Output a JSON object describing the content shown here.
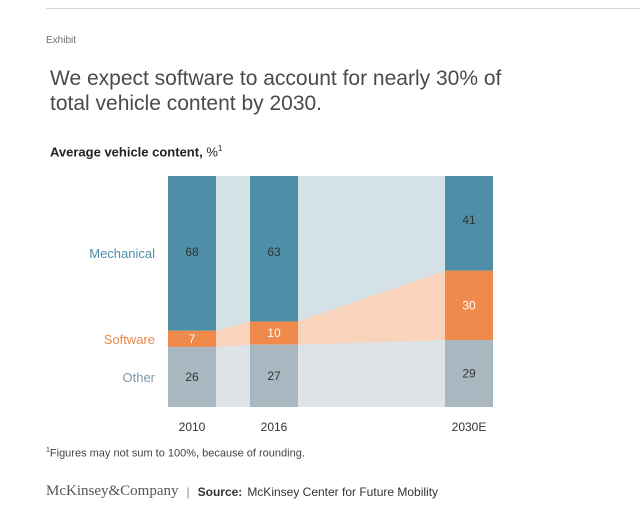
{
  "header": {
    "exhibit_label": "Exhibit",
    "title": "We expect software to account for nearly 30% of total vehicle content by 2030.",
    "subtitle_bold": "Average vehicle content,",
    "subtitle_unit": "%",
    "subtitle_note_mark": "1"
  },
  "chart_data": {
    "type": "bar",
    "stacked": true,
    "title": "Average vehicle content, %",
    "categories": [
      "2010",
      "2016",
      "2030E"
    ],
    "series": [
      {
        "name": "Other",
        "values": [
          26,
          27,
          29
        ]
      },
      {
        "name": "Software",
        "values": [
          7,
          10,
          30
        ]
      },
      {
        "name": "Mechanical",
        "values": [
          68,
          63,
          41
        ]
      }
    ],
    "ylim": [
      0,
      100
    ],
    "colors": {
      "Mechanical": "#4e8ea6",
      "Software": "#ef8a4c",
      "Other": "#a9b8c0",
      "connector_main": "#d4e2e8",
      "connector_software": "#f9d3bb",
      "connector_other": "#dde3e6"
    }
  },
  "footnote": {
    "mark": "1",
    "text": "Figures may not sum to 100%, because of rounding."
  },
  "footer": {
    "logo": "McKinsey&Company",
    "separator": "|",
    "source_label": "Source:",
    "source_text": "McKinsey Center for Future Mobility"
  }
}
